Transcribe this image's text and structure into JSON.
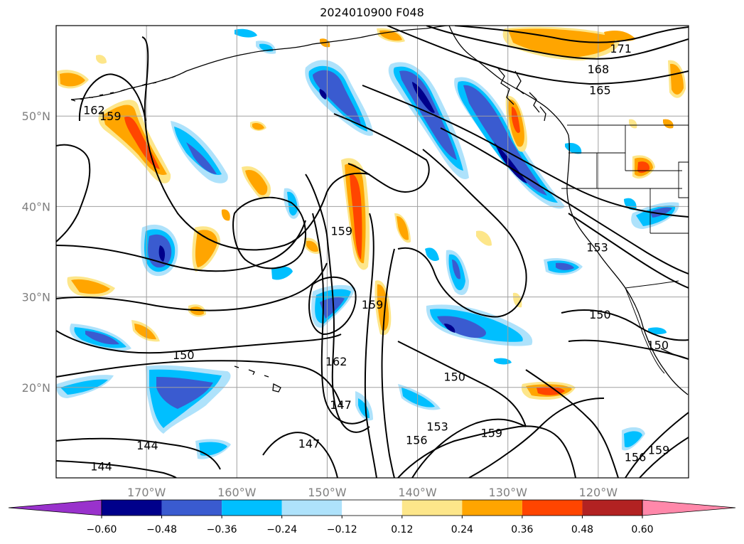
{
  "title": "2024010900 F048",
  "map": {
    "lon_range": [
      -180,
      -110
    ],
    "lat_range": [
      10,
      60
    ],
    "gridlines": true,
    "lon_labels": [
      {
        "lon": -170,
        "text": "170°W"
      },
      {
        "lon": -160,
        "text": "160°W"
      },
      {
        "lon": -150,
        "text": "150°W"
      },
      {
        "lon": -140,
        "text": "140°W"
      },
      {
        "lon": -130,
        "text": "130°W"
      },
      {
        "lon": -120,
        "text": "120°W"
      }
    ],
    "lat_labels": [
      {
        "lat": 20,
        "text": "20°N"
      },
      {
        "lat": 30,
        "text": "30°N"
      },
      {
        "lat": 40,
        "text": "40°N"
      },
      {
        "lat": 50,
        "text": "50°N"
      }
    ],
    "contour_labels": [
      {
        "text": "171",
        "lon": -117.5,
        "lat": 57.5
      },
      {
        "text": "168",
        "lon": -120.0,
        "lat": 55.2
      },
      {
        "text": "165",
        "lon": -119.8,
        "lat": 52.9
      },
      {
        "text": "162",
        "lon": -175.8,
        "lat": 50.7
      },
      {
        "text": "159",
        "lon": -174.0,
        "lat": 50.0
      },
      {
        "text": "159",
        "lon": -148.4,
        "lat": 37.3
      },
      {
        "text": "153",
        "lon": -120.1,
        "lat": 35.5
      },
      {
        "text": "159",
        "lon": -145.0,
        "lat": 29.2
      },
      {
        "text": "150",
        "lon": -119.8,
        "lat": 28.1
      },
      {
        "text": "150",
        "lon": -113.4,
        "lat": 24.7
      },
      {
        "text": "150",
        "lon": -165.9,
        "lat": 23.6
      },
      {
        "text": "162",
        "lon": -149.0,
        "lat": 22.9
      },
      {
        "text": "150",
        "lon": -135.9,
        "lat": 21.2
      },
      {
        "text": "147",
        "lon": -148.5,
        "lat": 18.1
      },
      {
        "text": "153",
        "lon": -137.8,
        "lat": 15.7
      },
      {
        "text": "159",
        "lon": -131.8,
        "lat": 15.0
      },
      {
        "text": "156",
        "lon": -140.1,
        "lat": 14.2
      },
      {
        "text": "159",
        "lon": -113.3,
        "lat": 13.1
      },
      {
        "text": "156",
        "lon": -115.9,
        "lat": 12.3
      },
      {
        "text": "147",
        "lon": -152.0,
        "lat": 13.8
      },
      {
        "text": "144",
        "lon": -169.9,
        "lat": 13.6
      },
      {
        "text": "144",
        "lon": -175.0,
        "lat": 11.3
      }
    ]
  },
  "colorbar": {
    "levels": [
      -0.6,
      -0.48,
      -0.36,
      -0.24,
      -0.12,
      0.12,
      0.24,
      0.36,
      0.48,
      0.6
    ],
    "tick_labels": [
      "−0.60",
      "−0.48",
      "−0.36",
      "−0.24",
      "−0.12",
      "0.12",
      "0.24",
      "0.36",
      "0.48",
      "0.60"
    ],
    "colors": [
      "#9932cc",
      "#00008b",
      "#3a5bd0",
      "#00bfff",
      "#aee2fb",
      "#ffffff",
      "#fde68a",
      "#ffa500",
      "#ff4500",
      "#b22222",
      "#ff88aa"
    ],
    "extend": "both"
  },
  "colors": {
    "contour": "#000000",
    "grid": "#a0a0a0",
    "coast": "#000000"
  }
}
